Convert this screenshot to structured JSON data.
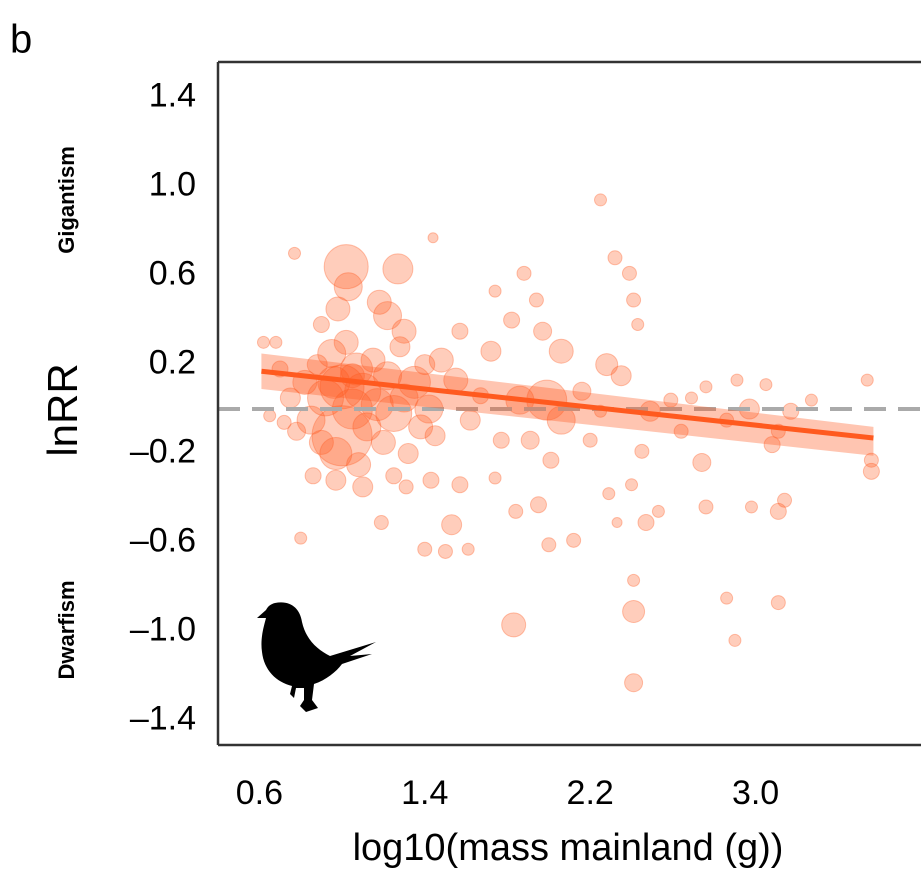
{
  "chart_data": {
    "type": "scatter",
    "panel_label": "b",
    "x_label": "log10(mass mainland (g))",
    "y_label": "lnRR",
    "annotations": [
      "Gigantism",
      "Dwarfism"
    ],
    "xlim": [
      0.4,
      3.8
    ],
    "ylim": [
      -1.51,
      1.56
    ],
    "xticks": [
      0.6,
      1.4,
      2.2,
      {
        "value": 3,
        "label": "3.0"
      }
    ],
    "yticks": [
      1.4,
      {
        "value": 1,
        "label": "1.0"
      },
      0.6,
      0.2,
      {
        "value": -0.2,
        "label": "–0.2"
      },
      {
        "value": -0.6,
        "label": "–0.6"
      },
      {
        "value": -1,
        "label": "–1.0"
      },
      {
        "value": -1.4,
        "label": "–1.4"
      }
    ],
    "color": "#ff5a1f",
    "reference_line": 0,
    "reference_color": "#aaaaaa",
    "x": [
      1.02,
      1.27,
      2.25,
      1.44,
      0.77,
      1.88,
      2.32,
      2.39,
      2.41,
      2.43,
      1.83,
      2.41,
      2.41,
      2.41,
      2.86,
      2.9,
      3.11,
      0.8,
      1.4,
      1.5,
      1.61,
      2.0,
      2.12,
      2.47,
      2.33,
      1.19,
      1.53,
      0.97,
      1.31,
      1.43,
      1.57,
      1.74,
      1.84,
      1.95,
      2.29,
      2.4,
      2.53,
      2.76,
      2.98,
      3.11,
      3.14,
      2.74,
      3.08,
      3.56,
      3.56,
      2.69,
      2.76,
      2.91,
      2.97,
      3.05,
      3.17,
      3.27,
      3.54,
      2.49,
      2.35,
      2.28,
      2.64,
      2.86,
      3.11,
      2.59,
      2.45,
      1.72,
      1.82,
      1.94,
      1.97,
      2.06,
      1.86,
      1.99,
      2.06,
      2.16,
      1.77,
      1.62,
      1.55,
      1.67,
      2.2,
      2.25,
      1.91,
      2.01,
      1.74,
      1.57,
      1.48,
      0.75,
      0.78,
      0.82,
      0.85,
      0.88,
      0.9,
      0.92,
      0.95,
      0.97,
      1.0,
      1.0,
      1.02,
      1.05,
      1.07,
      1.08,
      1.1,
      1.12,
      1.15,
      1.17,
      1.2,
      1.22,
      1.25,
      1.28,
      1.3,
      1.32,
      1.35,
      1.38,
      1.4,
      1.42,
      1.45,
      0.7,
      0.72,
      0.68,
      0.65,
      0.62,
      0.98,
      1.03,
      1.18,
      1.22,
      0.9,
      1.3,
      0.86,
      1.1,
      1.25,
      0.96,
      1.05
    ],
    "values": [
      0.64,
      0.63,
      0.94,
      0.77,
      0.7,
      0.61,
      0.68,
      0.61,
      0.49,
      0.38,
      -0.97,
      -0.91,
      -1.23,
      -0.77,
      -0.85,
      -1.04,
      -0.87,
      -0.58,
      -0.63,
      -0.64,
      -0.63,
      -0.61,
      -0.59,
      -0.51,
      -0.51,
      -0.51,
      -0.52,
      -0.32,
      -0.35,
      -0.32,
      -0.34,
      -0.31,
      -0.46,
      -0.43,
      -0.38,
      -0.34,
      -0.46,
      -0.44,
      -0.44,
      -0.46,
      -0.41,
      -0.24,
      -0.16,
      -0.28,
      -0.23,
      0.05,
      0.1,
      0.13,
      0,
      0.11,
      -0.01,
      0.04,
      0.13,
      -0.01,
      0.15,
      0.2,
      -0.1,
      -0.05,
      -0.1,
      0.04,
      -0.19,
      0.26,
      0.4,
      0.49,
      0.35,
      0.26,
      0.04,
      0.04,
      -0.05,
      0.08,
      -0.14,
      -0.05,
      0.13,
      0.06,
      -0.14,
      -0.01,
      -0.14,
      -0.23,
      0.53,
      0.35,
      0.22,
      0.05,
      -0.1,
      0.12,
      -0.05,
      0.2,
      -0.15,
      0.05,
      0.25,
      -0.2,
      0.1,
      -0.12,
      0.3,
      0,
      0.18,
      -0.25,
      0.08,
      -0.08,
      0.22,
      0.02,
      -0.15,
      0.15,
      -0.02,
      0.28,
      0.05,
      -0.2,
      0.12,
      -0.08,
      0.2,
      0,
      -0.12,
      0.18,
      -0.06,
      0.3,
      -0.03,
      0.3,
      0.45,
      0.55,
      0.48,
      0.42,
      0.38,
      0.35,
      -0.3,
      -0.35,
      -0.3,
      0.12,
      0.15
    ],
    "sizes": [
      22,
      15,
      6,
      5,
      6,
      7,
      7,
      7,
      7,
      6,
      12,
      11,
      9,
      6,
      6,
      6,
      7,
      6,
      7,
      7,
      6,
      7,
      7,
      8,
      5,
      7,
      10,
      10,
      7,
      8,
      8,
      6,
      7,
      8,
      6,
      6,
      6,
      7,
      6,
      8,
      7,
      9,
      8,
      8,
      7,
      6,
      6,
      6,
      10,
      6,
      8,
      6,
      6,
      10,
      10,
      11,
      7,
      7,
      7,
      7,
      7,
      10,
      8,
      7,
      9,
      12,
      14,
      20,
      14,
      9,
      8,
      10,
      12,
      8,
      7,
      6,
      9,
      8,
      6,
      8,
      12,
      10,
      9,
      12,
      14,
      10,
      12,
      18,
      14,
      16,
      22,
      30,
      12,
      20,
      16,
      12,
      18,
      14,
      12,
      16,
      12,
      14,
      18,
      10,
      14,
      10,
      16,
      12,
      10,
      14,
      10,
      8,
      7,
      6,
      6,
      6,
      12,
      14,
      12,
      14,
      8,
      12,
      8,
      10,
      8,
      16,
      12
    ],
    "fit": {
      "x": [
        0.61,
        3.57
      ],
      "y": [
        0.17,
        -0.13
      ],
      "ci_lower": [
        0.09,
        -0.21
      ],
      "ci_upper": [
        0.25,
        -0.08
      ]
    }
  }
}
